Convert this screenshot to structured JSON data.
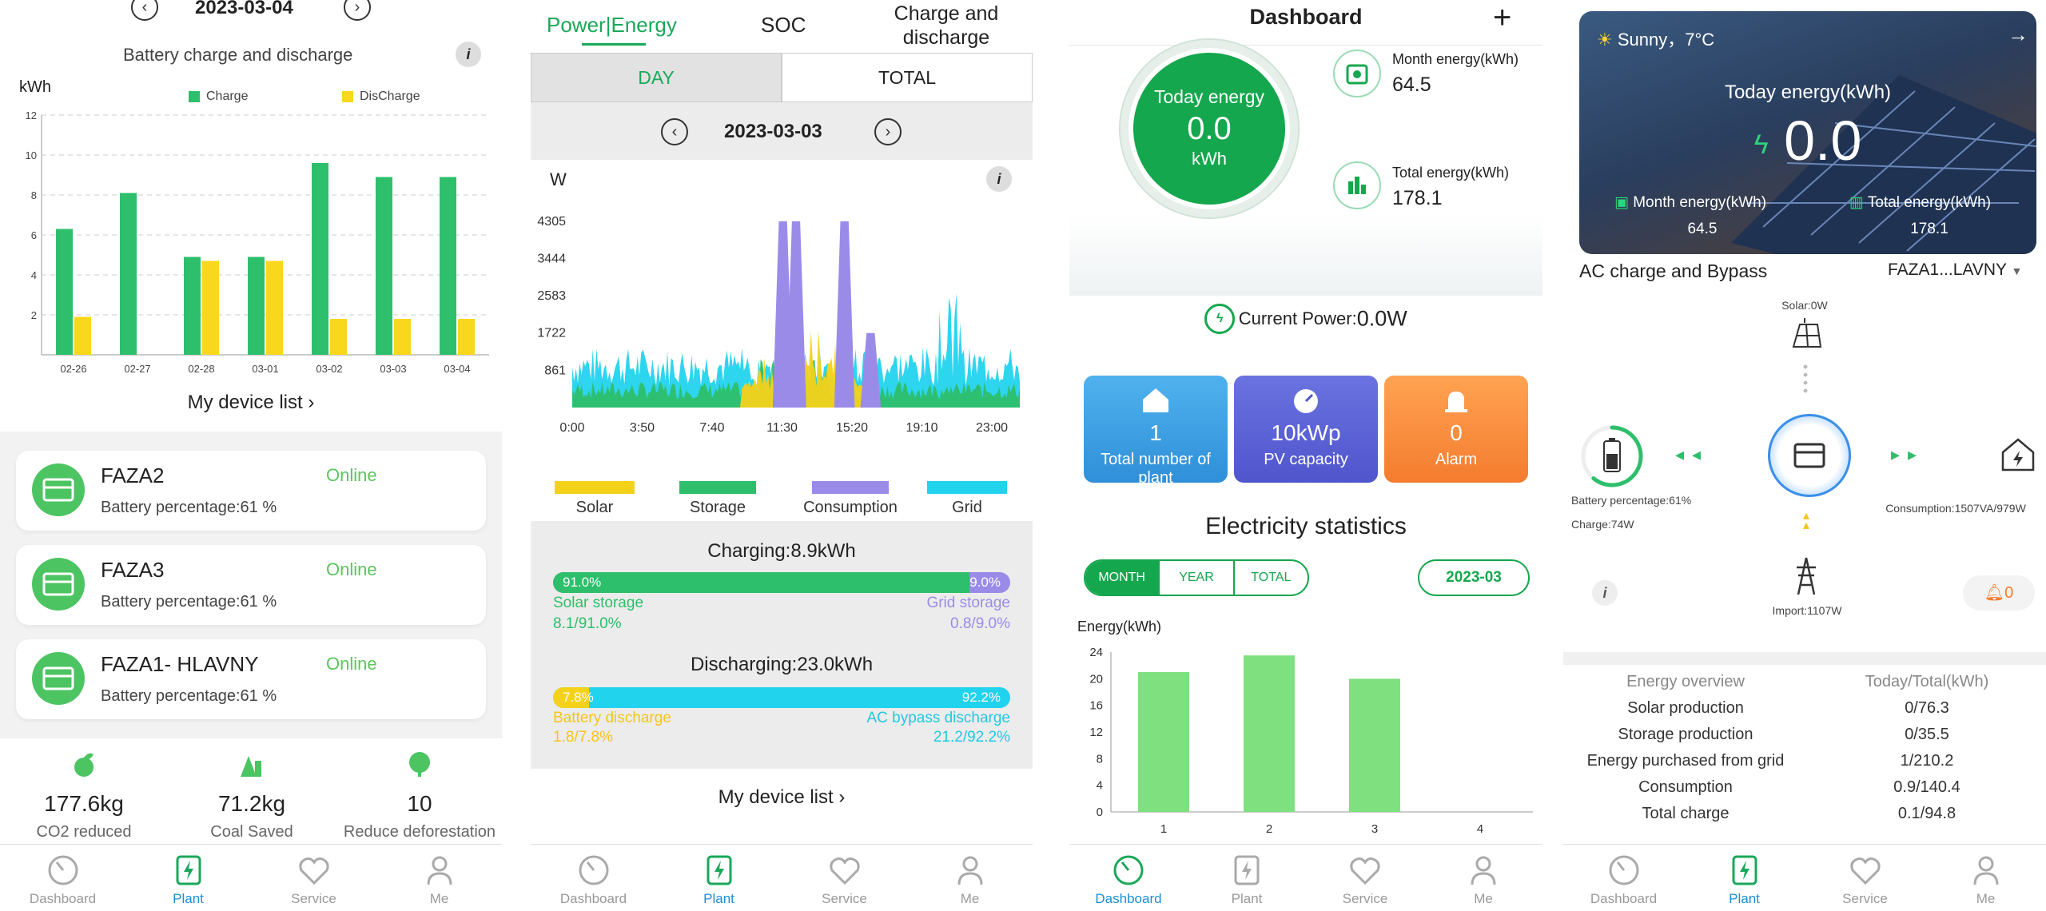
{
  "panel1": {
    "date": "2023-03-04",
    "chart_title": "Battery charge and discharge",
    "unit": "kWh",
    "legend_charge": "Charge",
    "legend_discharge": "DisCharge",
    "device_list": "My device list",
    "devices": [
      {
        "name": "FAZA2",
        "status": "Online",
        "battery": "Battery percentage:61 %"
      },
      {
        "name": "FAZA3",
        "status": "Online",
        "battery": "Battery percentage:61 %"
      },
      {
        "name": "FAZA1- HLAVNY",
        "status": "Online",
        "battery": "Battery percentage:61 %"
      }
    ],
    "stats": [
      {
        "value": "177.6kg",
        "label": "CO2 reduced"
      },
      {
        "value": "71.2kg",
        "label": "Coal Saved"
      },
      {
        "value": "10",
        "label": "Reduce deforestation"
      }
    ]
  },
  "chart_data": [
    {
      "type": "bar",
      "categories": [
        "02-26",
        "02-27",
        "02-28",
        "03-01",
        "03-02",
        "03-03",
        "03-04"
      ],
      "series": [
        {
          "name": "Charge",
          "values": [
            6.3,
            8.1,
            4.9,
            4.9,
            9.6,
            8.9,
            8.9
          ]
        },
        {
          "name": "DisCharge",
          "values": [
            1.9,
            0,
            4.7,
            4.7,
            1.8,
            1.8,
            1.8
          ]
        }
      ],
      "ylabel": "kWh",
      "ylim": [
        0,
        12
      ],
      "yticks": [
        2,
        4,
        6,
        8,
        10,
        12
      ],
      "colors": [
        "#2dbf6b",
        "#f9d71c"
      ]
    },
    {
      "type": "area",
      "ylabel": "W",
      "xticks": [
        "0:00",
        "3:50",
        "7:40",
        "11:30",
        "15:20",
        "19:10",
        "23:00"
      ],
      "yticks": [
        861,
        1722,
        2583,
        3444,
        4305
      ],
      "ylim": [
        0,
        4800
      ],
      "series": [
        {
          "name": "Solar",
          "color": "#f5d21a"
        },
        {
          "name": "Storage",
          "color": "#2dbf6b"
        },
        {
          "name": "Consumption",
          "color": "#9b8be8"
        },
        {
          "name": "Grid",
          "color": "#22d3ee"
        }
      ],
      "consumption_peaks": [
        [
          11.3,
          4305
        ],
        [
          12.0,
          4305
        ],
        [
          14.6,
          4305
        ],
        [
          16.0,
          1722
        ]
      ]
    },
    {
      "type": "bar",
      "ylabel": "Energy(kWh)",
      "categories": [
        "1",
        "2",
        "3",
        "4"
      ],
      "values": [
        21,
        23.5,
        20,
        0
      ],
      "ylim": [
        0,
        24
      ],
      "yticks": [
        0,
        4,
        8,
        12,
        16,
        20,
        24
      ],
      "color": "#7ee07e"
    }
  ],
  "panel2": {
    "tabs": [
      "Power|Energy",
      "SOC",
      "Charge and discharge"
    ],
    "seg": [
      "DAY",
      "TOTAL"
    ],
    "date": "2023-03-03",
    "unit": "W",
    "charging_title": "Charging:8.9kWh",
    "charging_left_pct": "91.0%",
    "charging_right_pct": "9.0%",
    "charging_left_fraction": 0.91,
    "solar_storage": "Solar storage",
    "solar_storage_val": "8.1/91.0%",
    "grid_storage": "Grid storage",
    "grid_storage_val": "0.8/9.0%",
    "discharging_title": "Discharging:23.0kWh",
    "discharging_left_pct": "7.8%",
    "discharging_right_pct": "92.2%",
    "discharging_left_fraction": 0.078,
    "battery_discharge": "Battery discharge",
    "battery_discharge_val": "1.8/7.8%",
    "ac_bypass": "AC bypass discharge",
    "ac_bypass_val": "21.2/92.2%",
    "device_list": "My device list"
  },
  "panel3": {
    "title": "Dashboard",
    "today_label": "Today energy",
    "today_value": "0.0",
    "today_unit": "kWh",
    "month_label": "Month energy(kWh)",
    "month_value": "64.5",
    "total_label": "Total energy(kWh)",
    "total_value": "178.1",
    "current_power_label": "Current Power:",
    "current_power_value": "0.0W",
    "kpis": [
      {
        "value": "1",
        "label": "Total number of plant"
      },
      {
        "value": "10kWp",
        "label": "PV capacity"
      },
      {
        "value": "0",
        "label": "Alarm"
      }
    ],
    "stats_title": "Electricity statistics",
    "stat_tabs": [
      "MONTH",
      "YEAR",
      "TOTAL"
    ],
    "month_pick": "2023-03"
  },
  "panel4": {
    "weather": "Sunny，7°C",
    "today_label": "Today energy(kWh)",
    "today_value": "0.0",
    "month_label": "Month energy(kWh)",
    "month_value": "64.5",
    "total_label": "Total energy(kWh)",
    "total_value": "178.1",
    "mode": "AC charge and Bypass",
    "device": "FAZA1...LAVNY",
    "solar": "Solar:0W",
    "battery_pct": "Battery percentage:61%",
    "charge": "Charge:74W",
    "consumption": "Consumption:1507VA/979W",
    "import": "Import:1107W",
    "alarm_count": "0",
    "battery_fraction": 0.61,
    "overview_head": [
      "Energy overview",
      "Today/Total(kWh)"
    ],
    "overview_rows": [
      [
        "Solar production",
        "0/76.3"
      ],
      [
        "Storage production",
        "0/35.5"
      ],
      [
        "Energy purchased from grid",
        "1/210.2"
      ],
      [
        "Consumption",
        "0.9/140.4"
      ],
      [
        "Total charge",
        "0.1/94.8"
      ]
    ]
  },
  "tabs": [
    "Dashboard",
    "Plant",
    "Service",
    "Me"
  ]
}
